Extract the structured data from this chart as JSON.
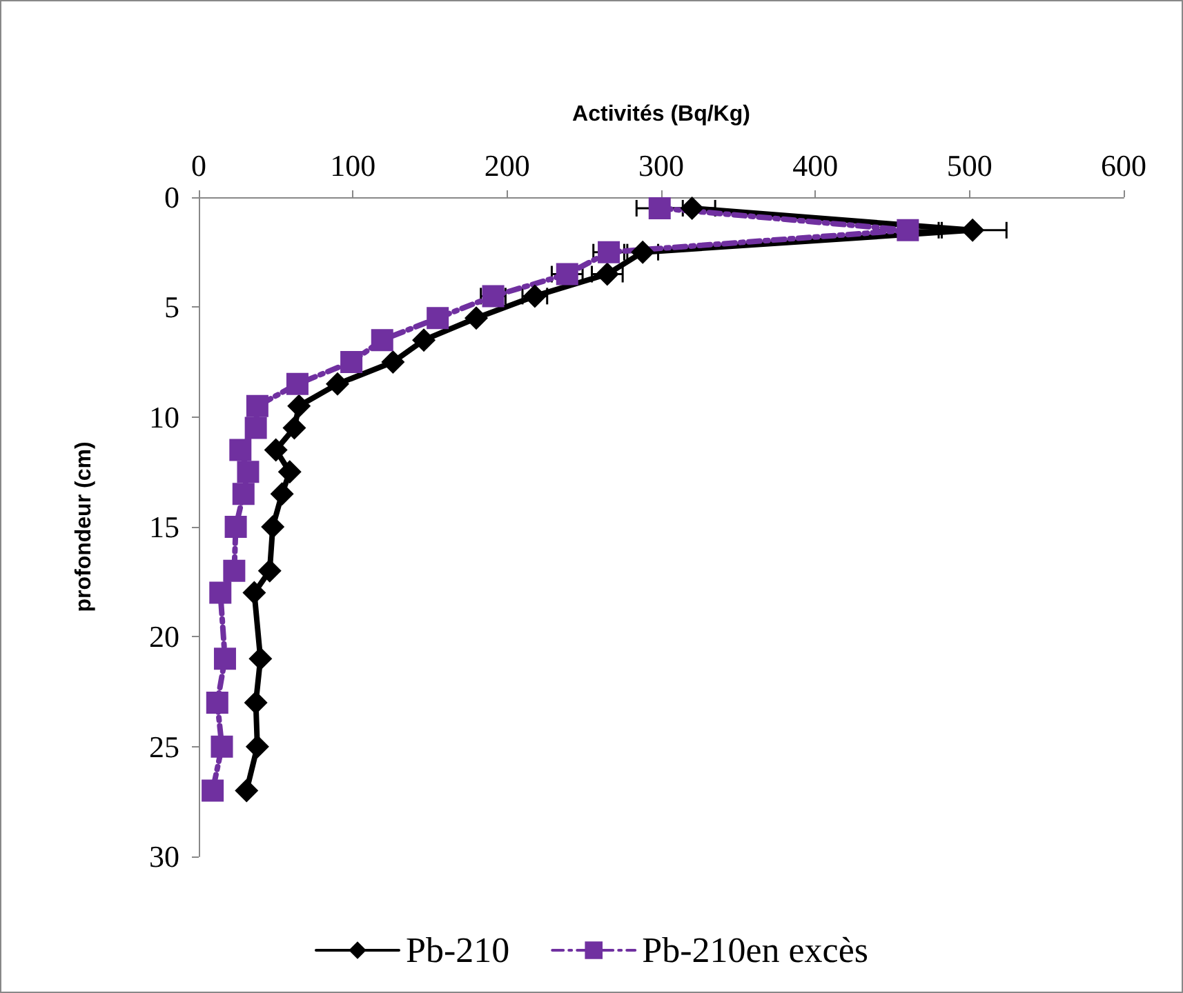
{
  "chart_data": {
    "type": "line",
    "xlabel": "Activités (Bq/Kg)",
    "ylabel": "profondeur (cm)",
    "xlim": [
      0,
      600
    ],
    "xticks": [
      0,
      100,
      200,
      300,
      400,
      500,
      600
    ],
    "ylim": [
      30,
      0
    ],
    "yticks": [
      0,
      5,
      10,
      15,
      20,
      25,
      30
    ],
    "grid": false,
    "legend": "bottom",
    "series": [
      {
        "name": "Pb-210",
        "color": "#000000",
        "marker": "diamond",
        "line_style": "solid",
        "x": [
          320,
          502,
          288,
          265,
          218,
          180,
          146,
          126,
          90,
          65,
          62,
          50,
          59,
          54,
          48,
          46,
          36,
          40,
          37,
          38,
          31
        ],
        "values": [
          0.5,
          1.5,
          2.5,
          3.5,
          4.5,
          5.5,
          6.5,
          7.5,
          8.5,
          9.5,
          10.5,
          11.5,
          12.5,
          13.5,
          15,
          17,
          18,
          21,
          23,
          25,
          27
        ],
        "xerrors": [
          15,
          22,
          10,
          10,
          8,
          null,
          null,
          null,
          null,
          null,
          null,
          null,
          null,
          null,
          null,
          null,
          null,
          null,
          null,
          null,
          null
        ]
      },
      {
        "name": "Pb-210en excès",
        "color": "#7030a0",
        "marker": "square",
        "line_style": "dashed",
        "x": [
          299,
          460,
          266,
          239,
          191,
          155,
          119,
          99,
          64,
          38,
          37,
          27,
          32,
          29,
          24,
          23,
          14,
          17,
          12,
          15,
          9
        ],
        "values": [
          0.5,
          1.5,
          2.5,
          3.5,
          4.5,
          5.5,
          6.5,
          7.5,
          8.5,
          9.5,
          10.5,
          11.5,
          12.5,
          13.5,
          15,
          17,
          18,
          21,
          23,
          25,
          27
        ],
        "xerrors": [
          15,
          22,
          10,
          10,
          8,
          null,
          null,
          null,
          null,
          null,
          null,
          null,
          null,
          null,
          null,
          null,
          null,
          null,
          null,
          null,
          null
        ]
      }
    ]
  }
}
